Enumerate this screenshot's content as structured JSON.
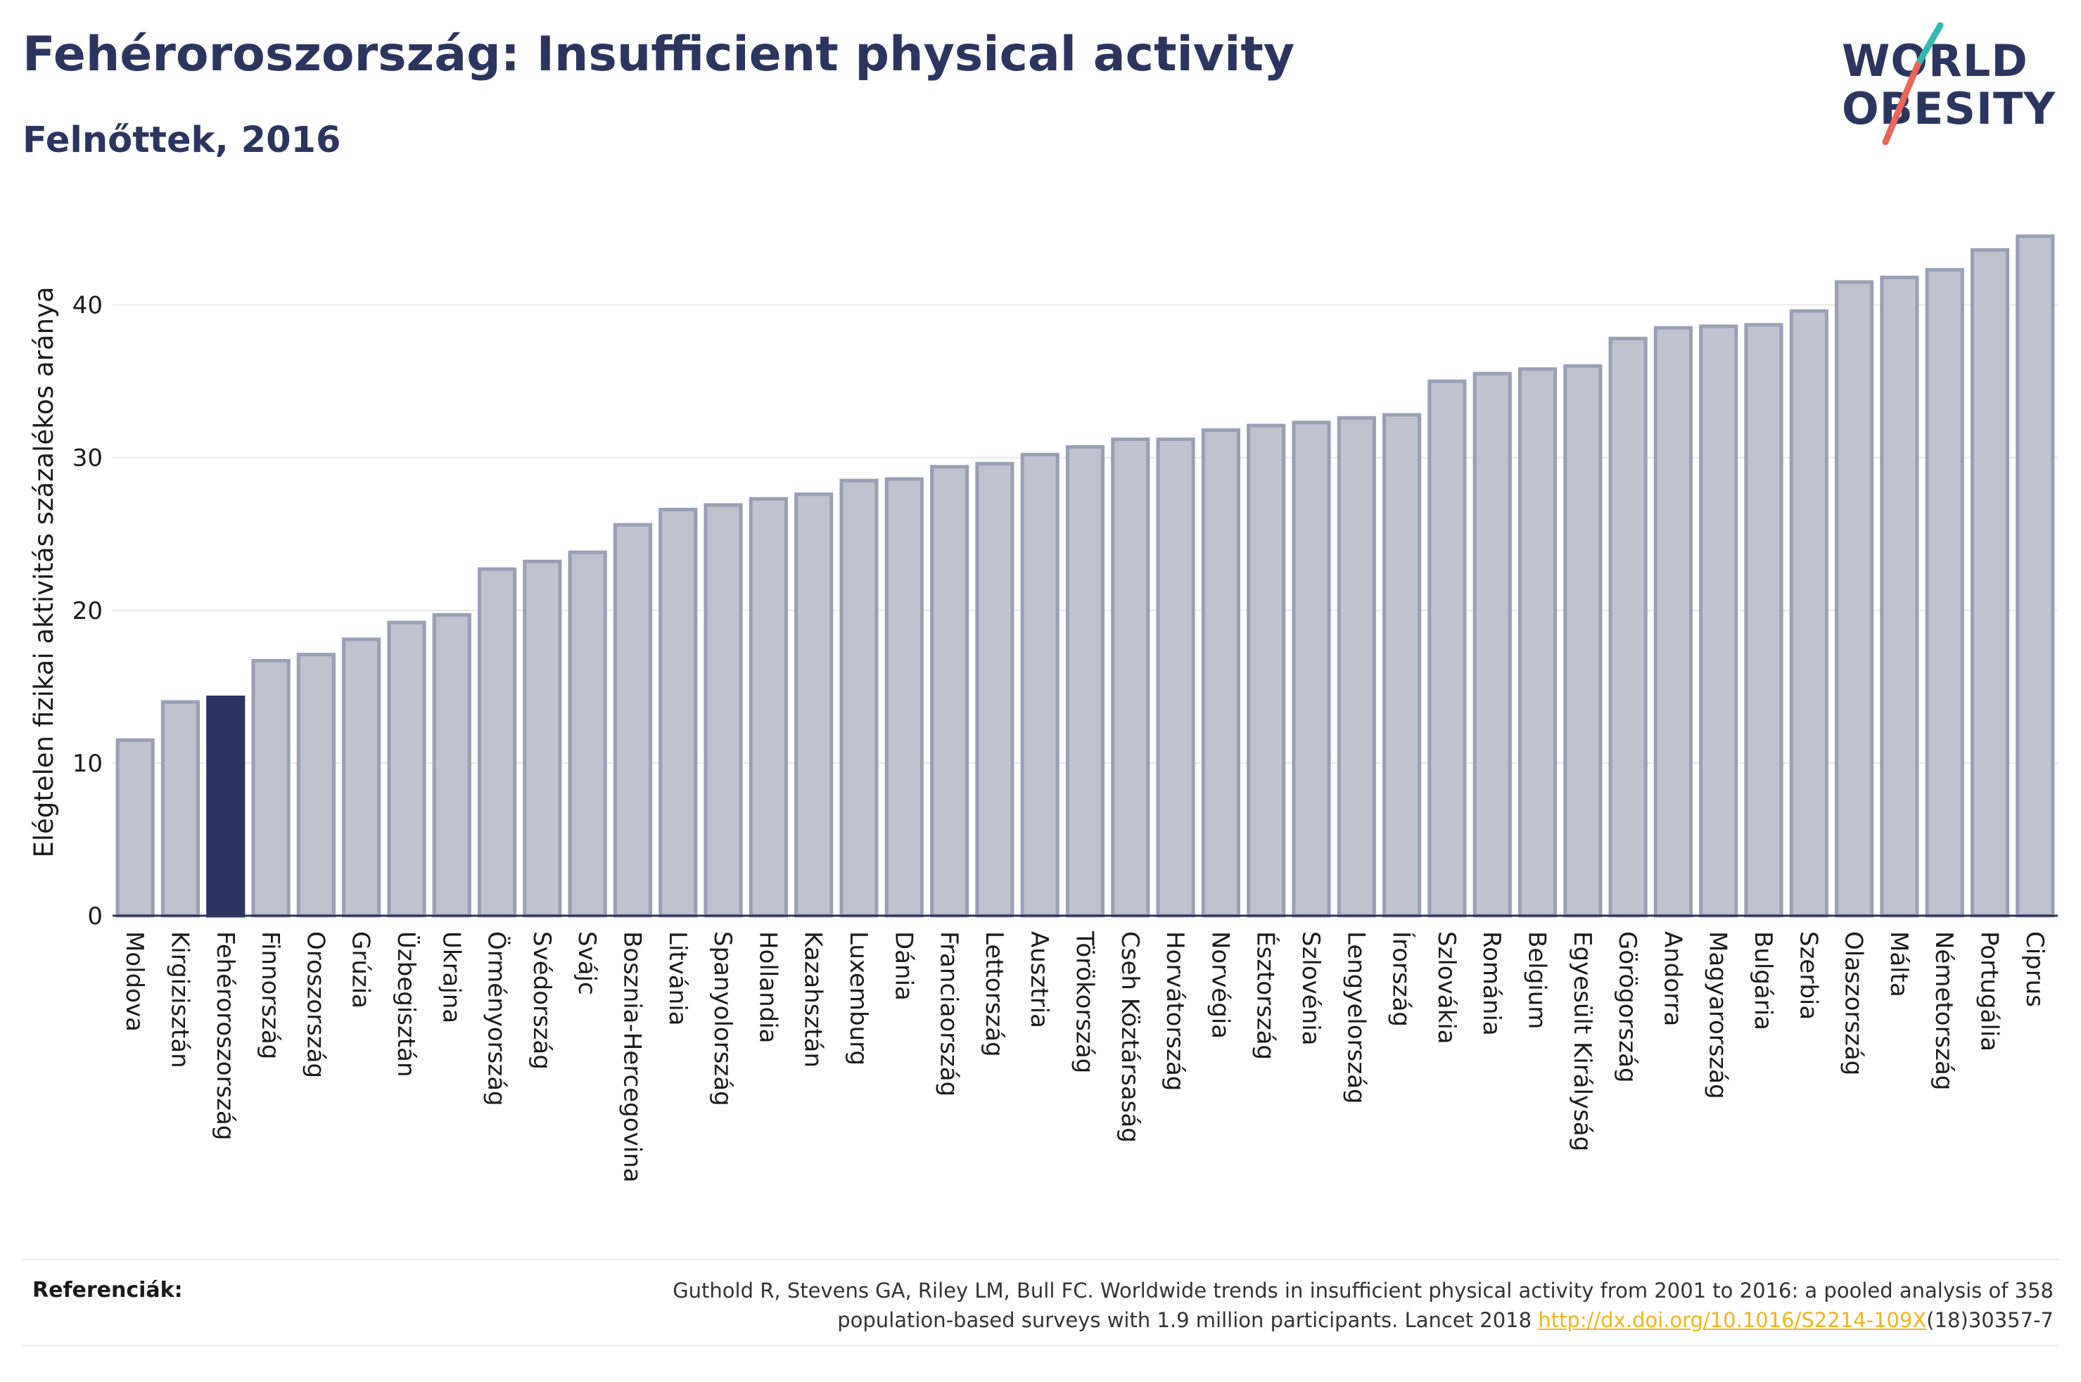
{
  "header": {
    "title": "Fehéroroszország: Insufficient physical activity",
    "subtitle": "Felnőttek, 2016"
  },
  "logo": {
    "line1": "WORLD",
    "line2": "OBESITY"
  },
  "chart_data": {
    "type": "bar",
    "ylabel": "Elégtelen fizikai aktivitás százalékos aránya",
    "xlabel": "",
    "ylim": [
      0,
      45
    ],
    "yticks": [
      0,
      10,
      20,
      30,
      40
    ],
    "grid": true,
    "highlight": "Fehéroroszország",
    "categories": [
      "Moldova",
      "Kirgizisztán",
      "Fehéroroszország",
      "Finnország",
      "Oroszország",
      "Grúzia",
      "Üzbegisztán",
      "Ukrajna",
      "Örményország",
      "Svédország",
      "Svájc",
      "Bosznia-Hercegovina",
      "Litvánia",
      "Spanyolország",
      "Hollandia",
      "Kazahsztán",
      "Luxemburg",
      "Dánia",
      "Franciaország",
      "Lettország",
      "Ausztria",
      "Törökország",
      "Cseh Köztársaság",
      "Horvátország",
      "Norvégia",
      "Észtország",
      "Szlovénia",
      "Lengyelország",
      "Írország",
      "Szlovákia",
      "Románia",
      "Belgium",
      "Egyesült Királyság",
      "Görögország",
      "Andorra",
      "Magyarország",
      "Bulgária",
      "Szerbia",
      "Olaszország",
      "Málta",
      "Németország",
      "Portugália",
      "Ciprus"
    ],
    "values": [
      11.5,
      14.0,
      14.3,
      16.7,
      17.1,
      18.1,
      19.2,
      19.7,
      22.7,
      23.2,
      23.8,
      25.6,
      26.6,
      26.9,
      27.3,
      27.6,
      28.5,
      28.6,
      29.4,
      29.6,
      30.2,
      30.7,
      31.2,
      31.2,
      31.8,
      32.1,
      32.3,
      32.6,
      32.8,
      35.0,
      35.5,
      35.8,
      36.0,
      37.8,
      38.5,
      38.6,
      38.7,
      39.6,
      41.5,
      41.8,
      42.3,
      43.6,
      44.5
    ],
    "colors": {
      "bar": "#bfc2cf",
      "bar_border": "#9a9fb5",
      "highlight": "#2b355f",
      "grid": "#e8e8e8",
      "axis": "#2b355f"
    }
  },
  "references": {
    "label": "Referenciák:",
    "text_line1": "Guthold R, Stevens GA, Riley LM, Bull FC. Worldwide trends in insufficient physical activity from 2001 to 2016: a pooled analysis of 358",
    "text_line2_pre": "population-based surveys with 1.9 million participants. Lancet 2018 ",
    "link": "http://dx.doi.org/10.1016/S2214-109X",
    "text_line2_post": "(18)30357-7"
  }
}
